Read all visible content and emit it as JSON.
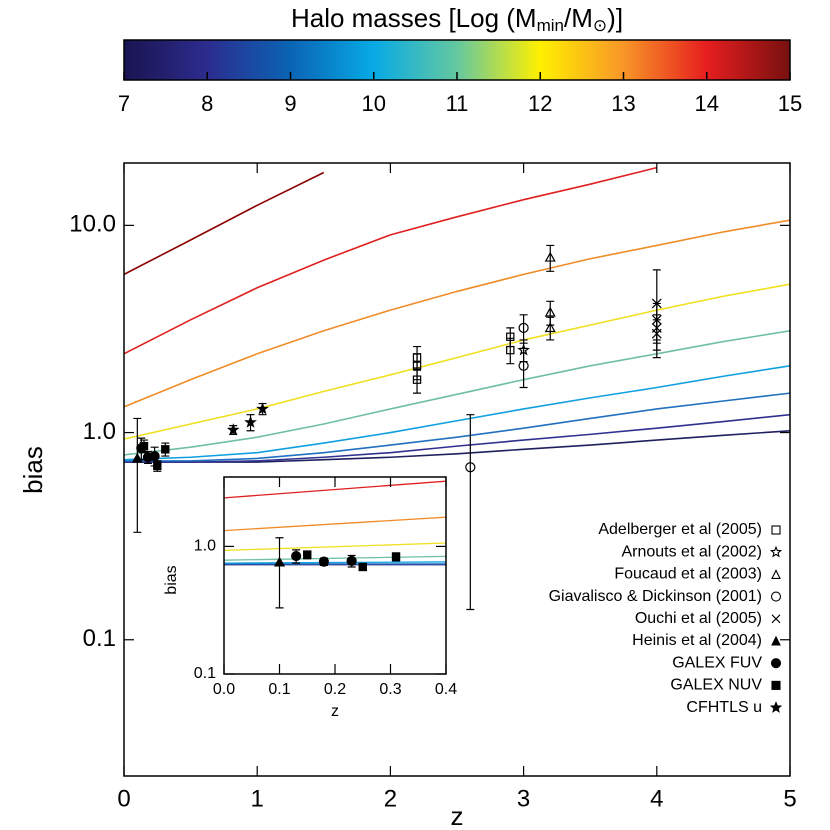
{
  "chart_data": [
    {
      "type": "colorbar",
      "title_parts": [
        "Halo masses [Log (M",
        "min",
        "/M",
        "⊙",
        ")]"
      ],
      "xlim": [
        7,
        15
      ],
      "xticks": [
        7,
        8,
        9,
        10,
        11,
        12,
        13,
        14,
        15
      ],
      "colors": [
        "#1a1450",
        "#2c2c8e",
        "#0a64b4",
        "#08aae6",
        "#64c8a0",
        "#fff000",
        "#f89628",
        "#e61e1e",
        "#781010"
      ]
    },
    {
      "type": "line",
      "ylog": true,
      "xlabel": "z",
      "ylabel": "bias",
      "xlim": [
        0,
        5
      ],
      "xticks": [
        0,
        1,
        2,
        3,
        4,
        5
      ],
      "ylim": [
        0.022,
        20
      ],
      "yticks": [
        {
          "value": 0.1,
          "label": "0.1"
        },
        {
          "value": 1,
          "label": "1.0"
        },
        {
          "value": 10,
          "label": "10.0"
        }
      ],
      "x": [
        0,
        0.5,
        1,
        1.5,
        2,
        2.5,
        3,
        3.5,
        4,
        4.5,
        5
      ],
      "series": [
        {
          "color": "#202060",
          "values": [
            0.72,
            0.72,
            0.72,
            0.74,
            0.76,
            0.79,
            0.83,
            0.87,
            0.92,
            0.97,
            1.02
          ]
        },
        {
          "color": "#303090",
          "values": [
            0.72,
            0.72,
            0.73,
            0.76,
            0.8,
            0.86,
            0.92,
            0.98,
            1.05,
            1.13,
            1.22
          ]
        },
        {
          "color": "#2070c0",
          "values": [
            0.73,
            0.73,
            0.75,
            0.8,
            0.87,
            0.95,
            1.05,
            1.17,
            1.3,
            1.42,
            1.55
          ]
        },
        {
          "color": "#10a0e0",
          "values": [
            0.74,
            0.76,
            0.8,
            0.89,
            1.0,
            1.14,
            1.3,
            1.47,
            1.65,
            1.87,
            2.1
          ]
        },
        {
          "color": "#70c0a0",
          "values": [
            0.78,
            0.85,
            0.95,
            1.1,
            1.3,
            1.53,
            1.8,
            2.1,
            2.4,
            2.75,
            3.1
          ]
        },
        {
          "color": "#f0e020",
          "values": [
            0.93,
            1.1,
            1.3,
            1.58,
            1.9,
            2.3,
            2.8,
            3.3,
            3.9,
            4.55,
            5.2
          ]
        },
        {
          "color": "#f08c28",
          "values": [
            1.33,
            1.8,
            2.4,
            3.1,
            3.9,
            4.8,
            5.8,
            6.9,
            8.0,
            9.3,
            10.6
          ]
        },
        {
          "color": "#e02020",
          "values": [
            2.4,
            3.5,
            5.0,
            6.8,
            9.0,
            11,
            13.3,
            15.8,
            19,
            null,
            null
          ]
        },
        {
          "color": "#8b0000",
          "values": [
            5.8,
            8.5,
            12.5,
            18,
            null,
            null,
            null,
            null,
            null,
            null,
            null
          ]
        }
      ],
      "observations": [
        {
          "name": "Adelberger et al (2005)",
          "marker": "square-open",
          "x": [
            2.2,
            2.2,
            2.2,
            2.9,
            2.9
          ],
          "values": [
            2.3,
            2.1,
            1.8,
            2.9,
            2.5
          ],
          "errors": [
            0.3,
            0.3,
            0.25,
            0.3,
            0.35
          ]
        },
        {
          "name": "Arnouts et al (2002)",
          "marker": "star-open",
          "x": [
            3.0
          ],
          "values": [
            2.5
          ],
          "errors": [
            0.3
          ]
        },
        {
          "name": "Foucaud et al (2003)",
          "marker": "triangle-open",
          "x": [
            3.2,
            3.2,
            3.2
          ],
          "values": [
            7.0,
            3.8,
            3.2
          ],
          "errors": [
            1.0,
            0.5,
            0.4
          ]
        },
        {
          "name": "Giavalisco & Dickinson (2001)",
          "marker": "circle-open",
          "x": [
            3.0,
            3.0,
            2.6
          ],
          "values": [
            3.2,
            2.1,
            0.68
          ],
          "errors": [
            0.5,
            0.45,
            0.54
          ]
        },
        {
          "name": "Ouchi et al (2005)",
          "marker": "cross",
          "x": [
            4,
            4,
            4,
            4
          ],
          "values": [
            4.2,
            3.5,
            3.2,
            3.0
          ],
          "errors": [
            1.9,
            0.7,
            0.5,
            0.5
          ]
        },
        {
          "name": "Heinis et al (2004)",
          "marker": "triangle",
          "x": [
            0.1
          ],
          "values": [
            0.75
          ],
          "errors": [
            0.42
          ]
        },
        {
          "name": "GALEX FUV",
          "marker": "circle",
          "x": [
            0.13,
            0.18,
            0.23
          ],
          "values": [
            0.84,
            0.76,
            0.77
          ],
          "errors": [
            0.1,
            0.05,
            0.08
          ]
        },
        {
          "name": "GALEX NUV",
          "marker": "square",
          "x": [
            0.15,
            0.25,
            0.31
          ],
          "values": [
            0.86,
            0.69,
            0.83
          ],
          "errors": [
            0.06,
            0.04,
            0.06
          ]
        },
        {
          "name": "CFHTLS u",
          "marker": "star",
          "x": [
            0.82,
            0.95,
            1.04
          ],
          "values": [
            1.03,
            1.12,
            1.3
          ],
          "errors": [
            0.05,
            0.1,
            0.08
          ]
        }
      ]
    },
    {
      "type": "inset",
      "ylog": true,
      "xlabel": "z",
      "ylabel": "bias",
      "xlim": [
        0,
        0.4
      ],
      "xticks": [
        {
          "value": 0,
          "label": "0.0"
        },
        0.1,
        0.2,
        0.3,
        0.4
      ],
      "ylim": [
        0.1,
        3.5
      ],
      "yticks": [
        0.1,
        {
          "value": 1,
          "label": "1.0"
        }
      ]
    }
  ]
}
